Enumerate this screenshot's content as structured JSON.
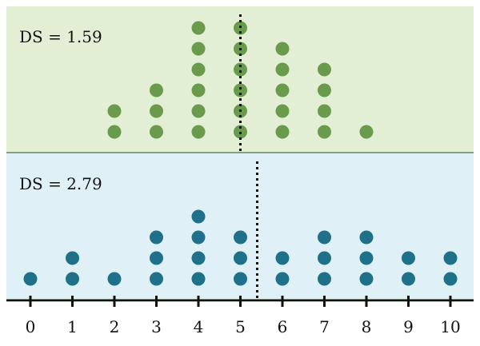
{
  "chart_data": {
    "type": "dot-plot",
    "x_ticks": [
      0,
      1,
      2,
      3,
      4,
      5,
      6,
      7,
      8,
      9,
      10
    ],
    "xlim": [
      0,
      10
    ],
    "panels": [
      {
        "label": "DS = 1.59",
        "background": "#e3efd5",
        "dot_color": "#6a9a4c",
        "mean": 5.0,
        "counts": {
          "2": 2,
          "3": 3,
          "4": 6,
          "5": 6,
          "6": 5,
          "7": 4,
          "8": 1
        }
      },
      {
        "label": "DS = 2.79",
        "background": "#dff0f7",
        "dot_color": "#1f7089",
        "mean": 5.4,
        "counts": {
          "0": 1,
          "1": 2,
          "2": 1,
          "3": 3,
          "4": 4,
          "5": 3,
          "6": 2,
          "7": 3,
          "8": 3,
          "9": 2,
          "10": 2
        }
      }
    ],
    "reference_line_style": "dotted"
  }
}
